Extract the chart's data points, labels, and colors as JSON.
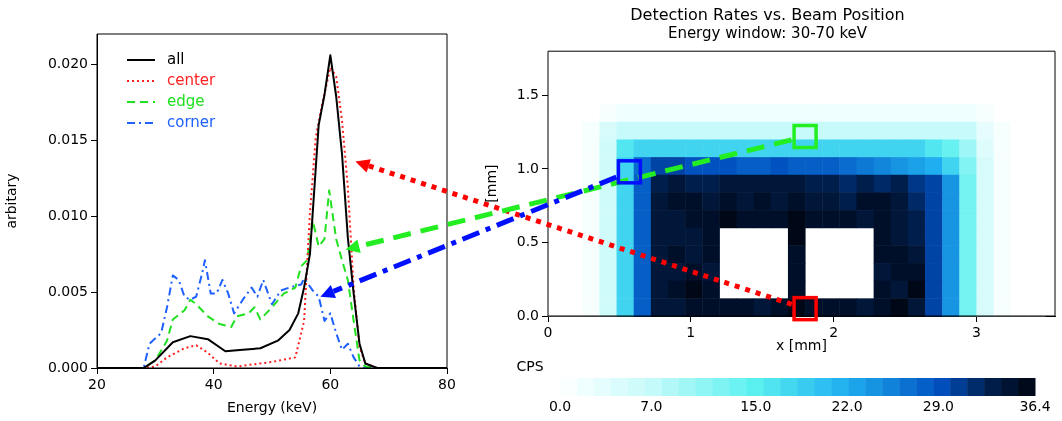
{
  "chart_data": [
    {
      "type": "line",
      "xlabel": "Energy (keV)",
      "ylabel": "arbitary",
      "xlim": [
        20,
        80
      ],
      "ylim": [
        0,
        0.022
      ],
      "xticks": [
        20,
        40,
        60,
        80
      ],
      "yticks": [
        {
          "value": 0,
          "label": "0.000"
        },
        {
          "value": 0.005,
          "label": "0.005"
        },
        {
          "value": 0.01,
          "label": "0.010"
        },
        {
          "value": 0.015,
          "label": "0.015"
        },
        {
          "value": 0.02,
          "label": "0.020"
        }
      ],
      "grid": false,
      "legend": "top left",
      "series": [
        {
          "name": "all",
          "color": "#000000",
          "line_style": "solid",
          "x": [
            20,
            28,
            30,
            33,
            36,
            39,
            42,
            45,
            48,
            51,
            53,
            54.5,
            55.5,
            56.5,
            58,
            59,
            60,
            61,
            62,
            63,
            64,
            65,
            66,
            68,
            80
          ],
          "values": [
            0,
            0,
            0.0005,
            0.0017,
            0.0021,
            0.0019,
            0.0011,
            0.0012,
            0.0013,
            0.0018,
            0.0025,
            0.0036,
            0.0053,
            0.0075,
            0.016,
            0.018,
            0.0206,
            0.0179,
            0.0141,
            0.0086,
            0.0049,
            0.0016,
            0.0003,
            0,
            0
          ]
        },
        {
          "name": "center",
          "color": "#ff2020",
          "line_style": "dotted",
          "x": [
            20,
            28,
            30,
            32,
            35,
            37,
            39,
            41,
            44,
            50,
            54,
            55.5,
            56.5,
            57.5,
            58.5,
            60,
            61,
            62,
            63,
            64,
            65,
            66,
            68,
            80
          ],
          "values": [
            0,
            0,
            0.0001,
            0.0007,
            0.0013,
            0.0015,
            0.001,
            0.0003,
            0.0001,
            0.0004,
            0.0007,
            0.0031,
            0.0102,
            0.0152,
            0.0172,
            0.0198,
            0.0192,
            0.0163,
            0.0119,
            0.0053,
            0.0014,
            0.0003,
            0,
            0
          ]
        },
        {
          "name": "edge",
          "color": "#20e020",
          "line_style": "dashed",
          "x": [
            20,
            28,
            30,
            32,
            33,
            35,
            36,
            37,
            39,
            41,
            43,
            44,
            46,
            47,
            48,
            50,
            52,
            54,
            55,
            56,
            57,
            58,
            59,
            59.8,
            61,
            62,
            63,
            64,
            65,
            66,
            68,
            80
          ],
          "values": [
            0,
            0,
            0.0005,
            0.0018,
            0.0032,
            0.0038,
            0.0045,
            0.0042,
            0.0034,
            0.0029,
            0.0027,
            0.0034,
            0.0036,
            0.004,
            0.0032,
            0.004,
            0.0049,
            0.0053,
            0.0067,
            0.0071,
            0.0097,
            0.008,
            0.0085,
            0.0117,
            0.0085,
            0.0071,
            0.0058,
            0.0031,
            0.0005,
            0.0001,
            0,
            0
          ]
        },
        {
          "name": "corner",
          "color": "#2060ff",
          "line_style": "dashdot",
          "x": [
            20,
            28,
            29,
            31,
            32,
            33,
            34,
            35,
            36,
            37,
            38,
            38.5,
            39.5,
            40.5,
            41.5,
            42.5,
            43.5,
            45,
            46.5,
            47.5,
            48.5,
            50,
            51.5,
            53,
            55,
            55.5,
            57,
            58,
            59,
            60,
            61,
            62,
            63,
            64,
            65,
            66,
            80
          ],
          "values": [
            0,
            0,
            0.0016,
            0.0023,
            0.004,
            0.0061,
            0.0058,
            0.0047,
            0.0045,
            0.0047,
            0.0062,
            0.0071,
            0.0049,
            0.0049,
            0.0058,
            0.0049,
            0.0036,
            0.0045,
            0.0053,
            0.0047,
            0.0058,
            0.0042,
            0.0051,
            0.0053,
            0.0055,
            0.0059,
            0.0051,
            0.0047,
            0.0031,
            0.0036,
            0.0023,
            0.0012,
            0.0016,
            0.0007,
            0.0001,
            0,
            0
          ]
        }
      ]
    },
    {
      "type": "heatmap",
      "title": "Detection Rates vs. Beam Position",
      "subtitle": "Energy window: 30-70 keV",
      "xlabel": "x [mm]",
      "ylabel": "[mm]",
      "clabel": "CPS",
      "xlim": [
        0,
        3.55
      ],
      "ylim": [
        0,
        1.8
      ],
      "xticks": [
        0,
        1,
        2,
        3
      ],
      "yticks": [
        {
          "value": 0,
          "label": "0.0"
        },
        {
          "value": 0.5,
          "label": "0.5"
        },
        {
          "value": 1,
          "label": "1.0"
        },
        {
          "value": 1.5,
          "label": "1.5"
        }
      ],
      "clim": [
        0,
        36.4
      ],
      "cticks": [
        {
          "value": 0,
          "label": "0.0"
        },
        {
          "value": 7,
          "label": "7.0"
        },
        {
          "value": 15,
          "label": "15.0"
        },
        {
          "value": 22,
          "label": "22.0"
        },
        {
          "value": 29,
          "label": "29.0"
        },
        {
          "value": 36.4,
          "label": "36.4"
        }
      ],
      "grid": false,
      "x": [
        0.06,
        0.18,
        0.3,
        0.42,
        0.54,
        0.66,
        0.78,
        0.9,
        1.02,
        1.14,
        1.26,
        1.38,
        1.5,
        1.62,
        1.74,
        1.86,
        1.98,
        2.1,
        2.22,
        2.34,
        2.46,
        2.58,
        2.7,
        2.82,
        2.94,
        3.06,
        3.18,
        3.3,
        3.42
      ],
      "y": [
        1.74,
        1.62,
        1.5,
        1.38,
        1.26,
        1.14,
        1.02,
        0.9,
        0.78,
        0.66,
        0.54,
        0.42,
        0.3,
        0.18,
        0.06
      ],
      "cells": [
        [
          0,
          0,
          0,
          0,
          0,
          0,
          0,
          0,
          0,
          0,
          0,
          0,
          0,
          0,
          0,
          0,
          0,
          0,
          0,
          0,
          0,
          0,
          0,
          0,
          0,
          0,
          0,
          0,
          0
        ],
        [
          0,
          0,
          0,
          0,
          0,
          0,
          0,
          0,
          0,
          0,
          0,
          0,
          0,
          0,
          0,
          0,
          0,
          0,
          0,
          0,
          0,
          0,
          0,
          0,
          0,
          0,
          0,
          0,
          0
        ],
        [
          0,
          0,
          0,
          0,
          0,
          0,
          0,
          0,
          0,
          0,
          0,
          0,
          0,
          0,
          0,
          0,
          0,
          0,
          0,
          0,
          0,
          0,
          0,
          0,
          0,
          0,
          0,
          0,
          0
        ],
        [
          0,
          0,
          0,
          1,
          2,
          2,
          2,
          2,
          2,
          2,
          2,
          2,
          2,
          2,
          2,
          2,
          2,
          2,
          2,
          2,
          2,
          2,
          2,
          2,
          2,
          1,
          0,
          0,
          0
        ],
        [
          0,
          0,
          1,
          5,
          7,
          7,
          7,
          7,
          7,
          7,
          7,
          7,
          7,
          7,
          7,
          7,
          7,
          7,
          7,
          7,
          7,
          7,
          7,
          7,
          7,
          3,
          1,
          0,
          0
        ],
        [
          0,
          0,
          1,
          6,
          16,
          18,
          18,
          18,
          18,
          18,
          18,
          18,
          18,
          18,
          18,
          18,
          18,
          18,
          18,
          18,
          18,
          18,
          16,
          14,
          10,
          4,
          1,
          0,
          0
        ],
        [
          0,
          0,
          1,
          6,
          18,
          27,
          30,
          30,
          29,
          29,
          29,
          28,
          28,
          29,
          28,
          28,
          28,
          27,
          26,
          25,
          24,
          23,
          22,
          18,
          12,
          5,
          1,
          0,
          0
        ],
        [
          0,
          0,
          1,
          6,
          18,
          28,
          33,
          34,
          33,
          33,
          34,
          34,
          34,
          34,
          34,
          33,
          33,
          32,
          33,
          32,
          33,
          31,
          30,
          24,
          13,
          5,
          1,
          0,
          0
        ],
        [
          0,
          0,
          1,
          6,
          18,
          28,
          34,
          35,
          35,
          34,
          35,
          34,
          35,
          34,
          35,
          34,
          34,
          33,
          35,
          35,
          34,
          32,
          30,
          24,
          13,
          5,
          1,
          0,
          0
        ],
        [
          0,
          0,
          1,
          6,
          18,
          28,
          34,
          34,
          35,
          35,
          36,
          35,
          35,
          35,
          36,
          35,
          35,
          35,
          34,
          35,
          34,
          33,
          30,
          24,
          13,
          5,
          1,
          0,
          0
        ],
        [
          0,
          0,
          1,
          6,
          18,
          28,
          34,
          34,
          34,
          35,
          null,
          null,
          null,
          null,
          36,
          null,
          null,
          null,
          null,
          35,
          34,
          33,
          30,
          24,
          13,
          5,
          1,
          0,
          0
        ],
        [
          0,
          0,
          1,
          6,
          18,
          28,
          34,
          35,
          34,
          35,
          null,
          null,
          null,
          null,
          35,
          null,
          null,
          null,
          null,
          35,
          35,
          34,
          30,
          24,
          13,
          5,
          1,
          0,
          0
        ],
        [
          0,
          0,
          1,
          6,
          18,
          28,
          34,
          34,
          35,
          34,
          null,
          null,
          null,
          null,
          35,
          null,
          null,
          null,
          null,
          34,
          35,
          35,
          30,
          24,
          13,
          5,
          1,
          0,
          0
        ],
        [
          0,
          0,
          1,
          6,
          18,
          28,
          34,
          35,
          36,
          35,
          null,
          null,
          null,
          null,
          35,
          null,
          null,
          null,
          null,
          35,
          34,
          36,
          30,
          24,
          13,
          5,
          1,
          0,
          0
        ],
        [
          0,
          0,
          1,
          6,
          18,
          28,
          34,
          34,
          35,
          35,
          35,
          35,
          34,
          35,
          36,
          35,
          35,
          35,
          34,
          35,
          36,
          34,
          30,
          24,
          13,
          5,
          1,
          0,
          0
        ]
      ]
    }
  ]
}
